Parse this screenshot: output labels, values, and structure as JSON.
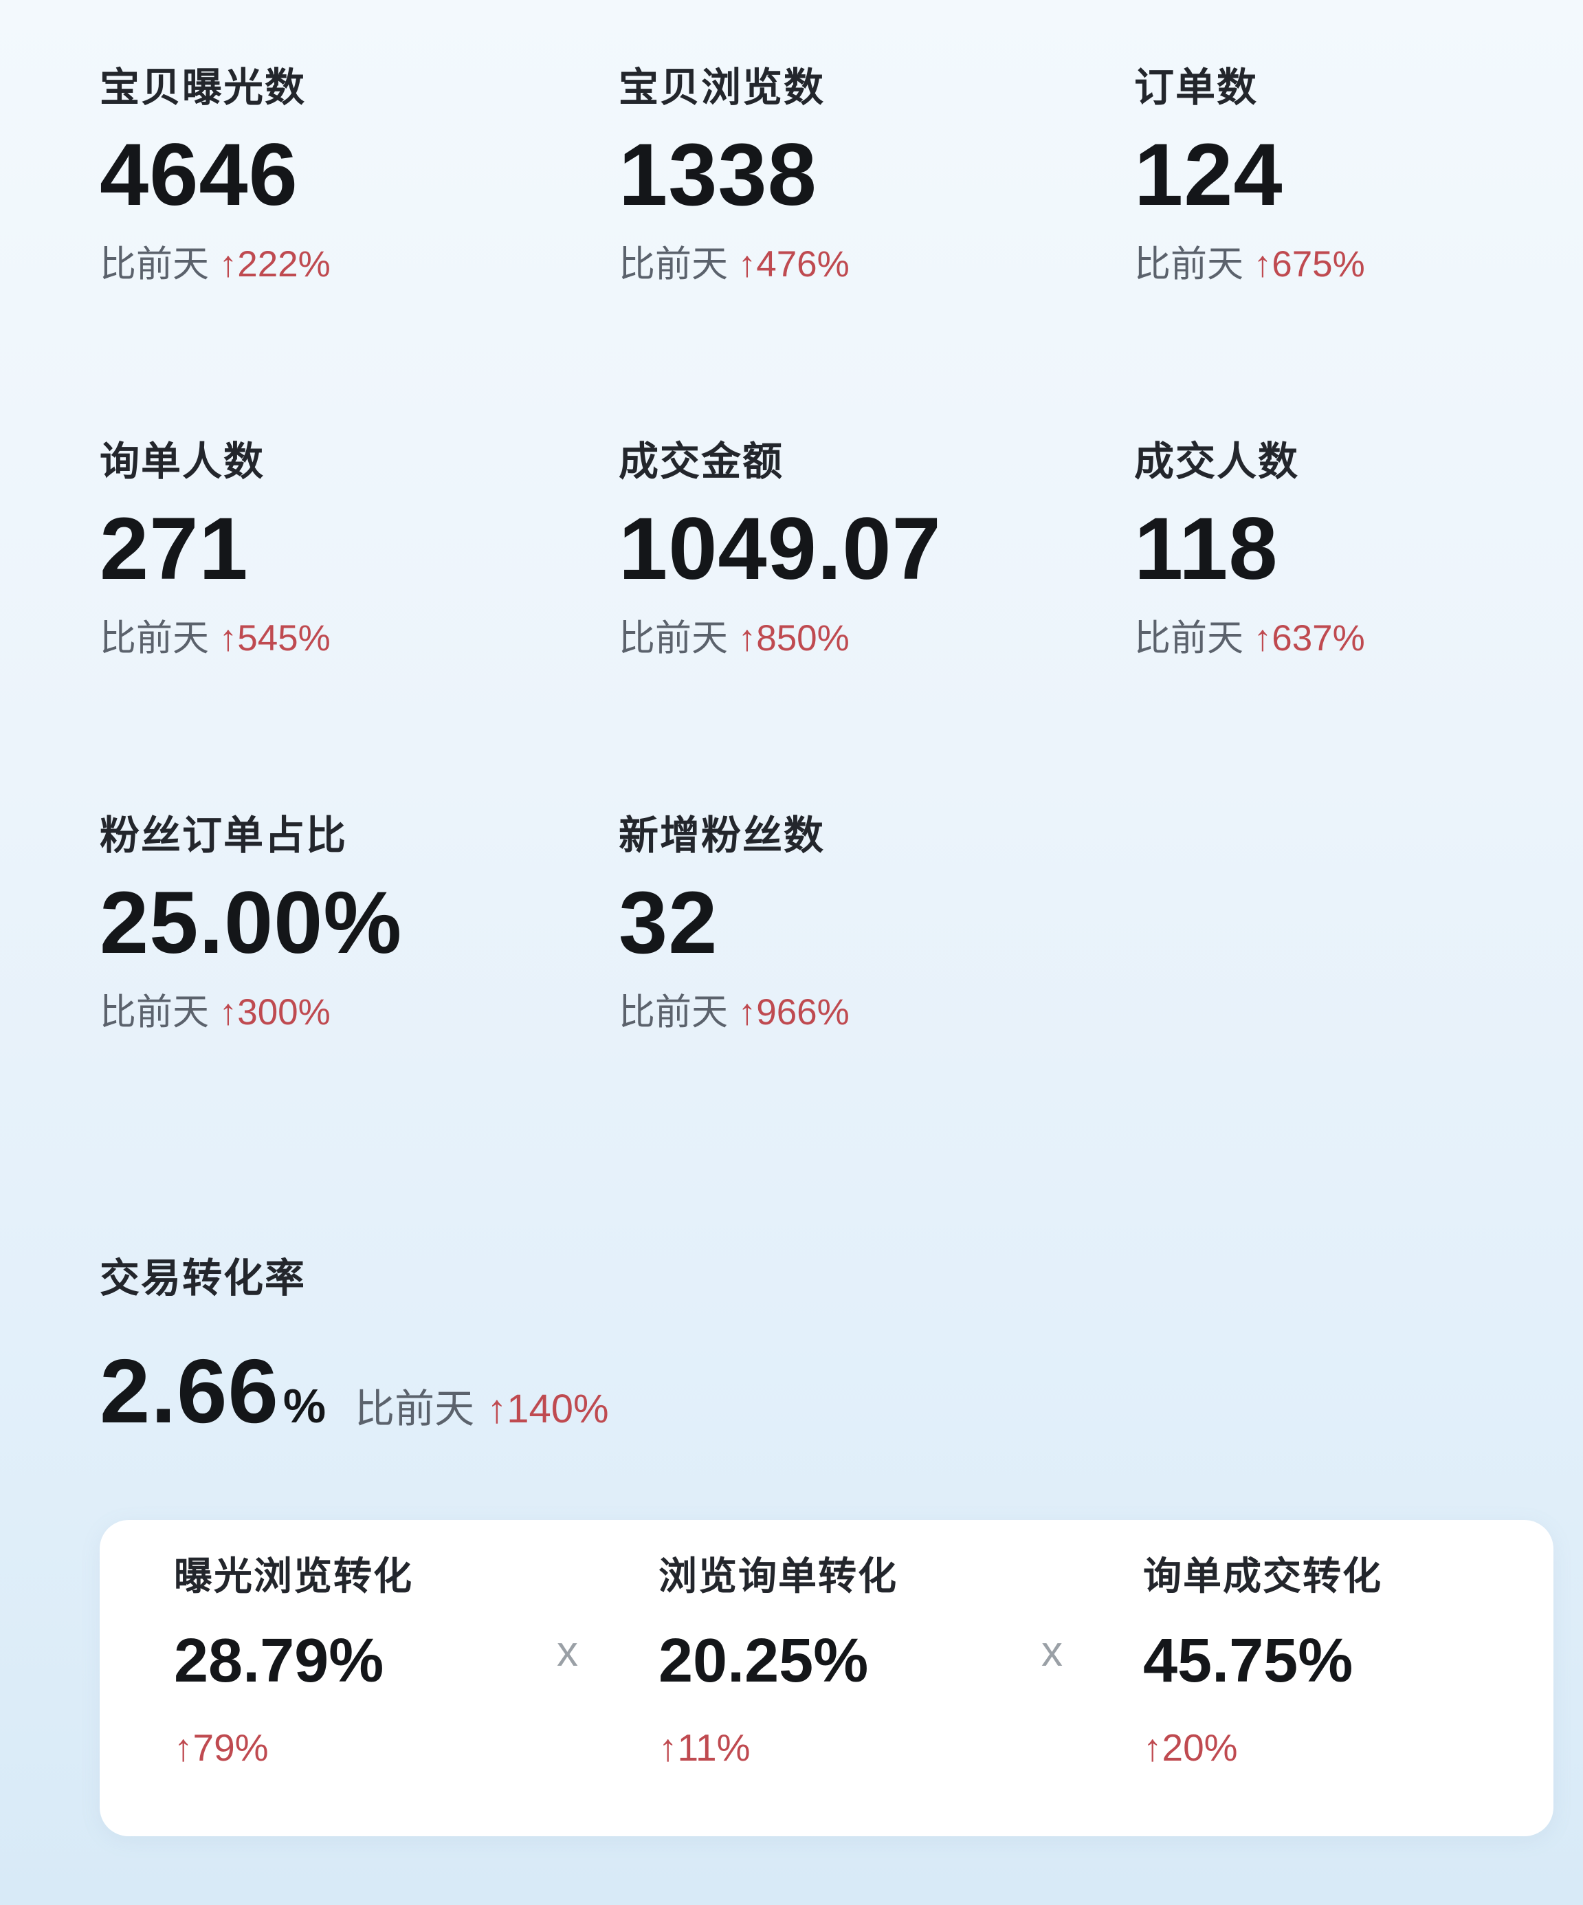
{
  "colors": {
    "background_top": "#f3f9fd",
    "background_bottom": "#d8eaf7",
    "accent_red": "#bf4a50",
    "text_dark": "#141619",
    "text_gray": "#5b626c",
    "card_background": "#ffffff",
    "separator_gray": "#9aa0a6"
  },
  "compare_label": "比前天",
  "arrow": "↑",
  "metrics": [
    {
      "label": "宝贝曝光数",
      "value": "4646",
      "change": "222%"
    },
    {
      "label": "宝贝浏览数",
      "value": "1338",
      "change": "476%"
    },
    {
      "label": "订单数",
      "value": "124",
      "change": "675%"
    },
    {
      "label": "询单人数",
      "value": "271",
      "change": "545%"
    },
    {
      "label": "成交金额",
      "value": "1049.07",
      "change": "850%"
    },
    {
      "label": "成交人数",
      "value": "118",
      "change": "637%"
    },
    {
      "label": "粉丝订单占比",
      "value": "25.00%",
      "change": "300%"
    },
    {
      "label": "新增粉丝数",
      "value": "32",
      "change": "966%"
    }
  ],
  "conversion": {
    "label": "交易转化率",
    "value": "2.66",
    "unit": "%",
    "change": "140%"
  },
  "funnel": {
    "separator": "x",
    "steps": [
      {
        "label": "曝光浏览转化",
        "value": "28.79%",
        "change": "79%"
      },
      {
        "label": "浏览询单转化",
        "value": "20.25%",
        "change": "11%"
      },
      {
        "label": "询单成交转化",
        "value": "45.75%",
        "change": "20%"
      }
    ]
  }
}
